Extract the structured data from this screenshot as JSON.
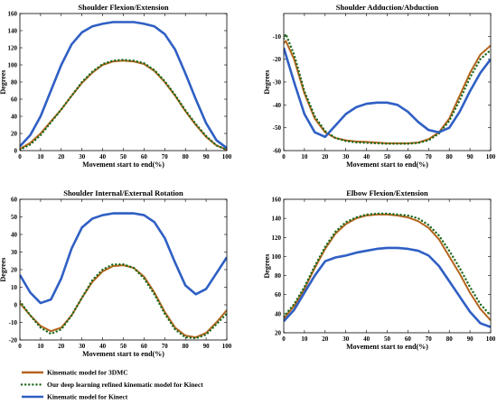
{
  "figure": {
    "legend": [
      {
        "label": "Kinematic model for 3DMC",
        "color": "#b5651d",
        "style": "solid"
      },
      {
        "label": "Our deep learning refined kinematic model for Kinect",
        "color": "#1e6b1e",
        "style": "dotted"
      },
      {
        "label": "Kinematic model for Kinect",
        "color": "#2f5fc4",
        "style": "solid"
      }
    ]
  },
  "chart_data": [
    {
      "type": "line",
      "title": "Shoulder Flexion/Extension",
      "xlabel": "Movement start to end(%)",
      "ylabel": "Degrees",
      "xlim": [
        0,
        100
      ],
      "ylim": [
        0,
        160
      ],
      "xticks": [
        0,
        10,
        20,
        30,
        40,
        50,
        60,
        70,
        80,
        90,
        100
      ],
      "yticks": [
        0,
        20,
        40,
        60,
        80,
        100,
        120,
        140,
        160
      ],
      "x": [
        0,
        5,
        10,
        15,
        20,
        25,
        30,
        35,
        40,
        45,
        50,
        55,
        60,
        65,
        70,
        75,
        80,
        85,
        90,
        95,
        100
      ],
      "series": [
        {
          "name": "Kinematic model for 3DMC",
          "values": [
            2,
            9,
            20,
            34,
            48,
            64,
            79,
            91,
            100,
            104,
            105,
            104,
            101,
            93,
            80,
            64,
            46,
            30,
            16,
            6,
            1
          ]
        },
        {
          "name": "Our deep learning refined kinematic model for Kinect",
          "values": [
            1,
            7,
            18,
            33,
            48,
            64,
            80,
            92,
            101,
            105,
            106,
            105,
            102,
            94,
            81,
            65,
            47,
            31,
            17,
            6,
            1
          ]
        },
        {
          "name": "Kinematic model for Kinect",
          "values": [
            5,
            18,
            40,
            70,
            100,
            124,
            138,
            145,
            148,
            150,
            150,
            150,
            148,
            145,
            136,
            118,
            90,
            60,
            32,
            12,
            3
          ]
        }
      ]
    },
    {
      "type": "line",
      "title": "Shoulder Adduction/Abduction",
      "xlabel": "Movement start to end(%)",
      "ylabel": "Degrees",
      "xlim": [
        0,
        100
      ],
      "ylim": [
        -60,
        0
      ],
      "xticks": [
        0,
        10,
        20,
        30,
        40,
        50,
        60,
        70,
        80,
        90,
        100
      ],
      "yticks": [
        -60,
        -50,
        -40,
        -30,
        -20,
        -10
      ],
      "x": [
        0,
        1,
        5,
        10,
        15,
        20,
        25,
        30,
        35,
        40,
        45,
        50,
        55,
        60,
        65,
        70,
        75,
        80,
        85,
        90,
        95,
        100
      ],
      "series": [
        {
          "name": "Kinematic model for 3DMC",
          "values": [
            -13,
            -12,
            -20,
            -35,
            -46,
            -52,
            -54.5,
            -55.5,
            -56,
            -56.2,
            -56.5,
            -56.8,
            -56.8,
            -56.8,
            -56.5,
            -55,
            -52,
            -46,
            -36,
            -26,
            -18,
            -14
          ]
        },
        {
          "name": "Our deep learning refined kinematic model for Kinect",
          "values": [
            -11,
            -9,
            -18,
            -34,
            -45,
            -51.5,
            -54.5,
            -55.8,
            -56.4,
            -56.6,
            -56.8,
            -57,
            -57,
            -57,
            -56.6,
            -55.5,
            -52.5,
            -47,
            -38,
            -28,
            -20,
            -16
          ]
        },
        {
          "name": "Kinematic model for Kinect",
          "values": [
            -15,
            -18,
            -30,
            -44,
            -52,
            -54,
            -49,
            -44,
            -41,
            -39.5,
            -39,
            -39,
            -40,
            -43,
            -47.5,
            -51,
            -52,
            -50,
            -43,
            -34,
            -26,
            -20
          ]
        }
      ]
    },
    {
      "type": "line",
      "title": "Shoulder Internal/External Rotation",
      "xlabel": "Movement start to end(%)",
      "ylabel": "Degrees",
      "xlim": [
        0,
        100
      ],
      "ylim": [
        -20,
        60
      ],
      "xticks": [
        0,
        10,
        20,
        30,
        40,
        50,
        60,
        70,
        80,
        90,
        100
      ],
      "yticks": [
        -20,
        -10,
        0,
        10,
        20,
        30,
        40,
        50,
        60
      ],
      "x": [
        0,
        5,
        10,
        15,
        20,
        25,
        30,
        35,
        40,
        45,
        50,
        55,
        60,
        65,
        70,
        75,
        80,
        85,
        90,
        95,
        100
      ],
      "series": [
        {
          "name": "Kinematic model for 3DMC",
          "values": [
            1,
            -6,
            -12,
            -15,
            -13,
            -6,
            4,
            13,
            19,
            22,
            22.5,
            21,
            16,
            7,
            -4,
            -13,
            -17.5,
            -18.5,
            -16,
            -10,
            -3
          ]
        },
        {
          "name": "Our deep learning refined kinematic model for Kinect",
          "values": [
            2,
            -6,
            -13,
            -16.5,
            -14,
            -6,
            4,
            14,
            20,
            23,
            23,
            21,
            15,
            6,
            -5,
            -14,
            -18.5,
            -19,
            -17,
            -11,
            -5
          ]
        },
        {
          "name": "Kinematic model for Kinect",
          "values": [
            17,
            7,
            1,
            3,
            15,
            32,
            44,
            49,
            51,
            52,
            52,
            52,
            51,
            47,
            38,
            24,
            11,
            6,
            9,
            18,
            27
          ]
        }
      ]
    },
    {
      "type": "line",
      "title": "Elbow Flexion/Extension",
      "xlabel": "Movement start to end(%)",
      "ylabel": "Degrees",
      "xlim": [
        0,
        100
      ],
      "ylim": [
        20,
        160
      ],
      "xticks": [
        0,
        10,
        20,
        30,
        40,
        50,
        60,
        70,
        80,
        90,
        100
      ],
      "yticks": [
        20,
        40,
        60,
        80,
        100,
        120,
        140,
        160
      ],
      "x": [
        0,
        5,
        10,
        15,
        20,
        25,
        30,
        35,
        40,
        45,
        50,
        55,
        60,
        65,
        70,
        75,
        80,
        85,
        90,
        95,
        100
      ],
      "series": [
        {
          "name": "Kinematic model for 3DMC",
          "values": [
            35,
            48,
            66,
            88,
            108,
            124,
            134,
            140,
            143,
            144,
            144,
            143,
            141,
            137,
            130,
            118,
            100,
            82,
            62,
            45,
            33
          ]
        },
        {
          "name": "Our deep learning refined kinematic model for Kinect",
          "values": [
            37,
            50,
            68,
            90,
            110,
            126,
            136,
            141,
            144,
            145,
            145,
            144,
            143,
            140,
            133,
            122,
            106,
            88,
            68,
            50,
            38
          ]
        },
        {
          "name": "Kinematic model for Kinect",
          "values": [
            32,
            44,
            62,
            80,
            95,
            99,
            101,
            104,
            106,
            108,
            109,
            109,
            108,
            106,
            101,
            90,
            74,
            58,
            42,
            30,
            26
          ]
        }
      ]
    }
  ]
}
